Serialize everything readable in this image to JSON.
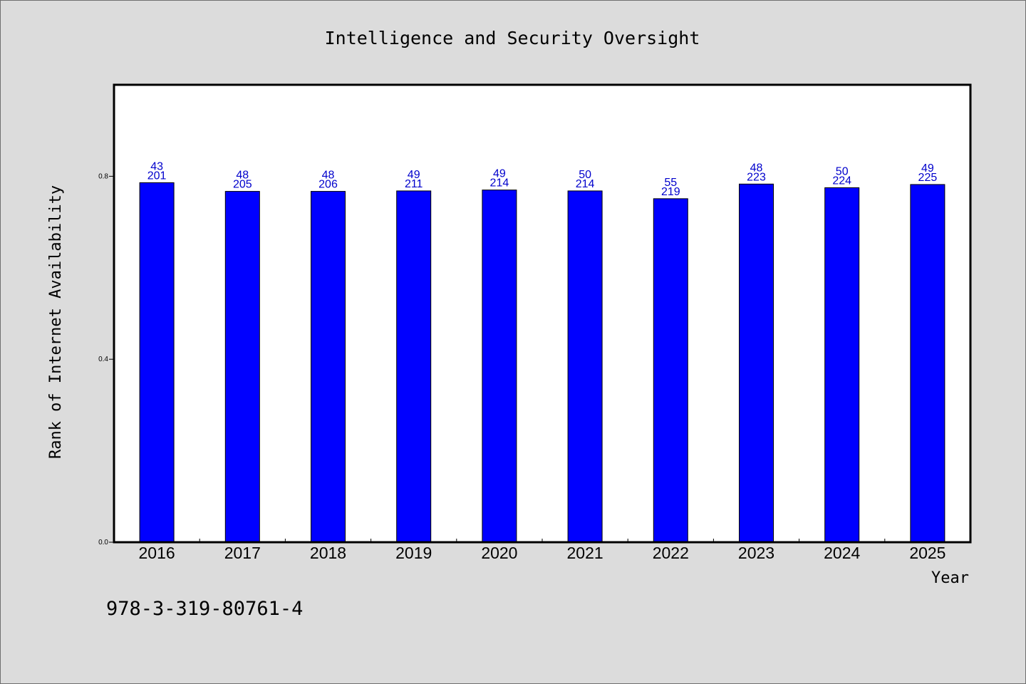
{
  "chart_data": {
    "type": "bar",
    "title": "Intelligence and Security Oversight",
    "xlabel": "Year",
    "ylabel": "Rank of Internet Availability",
    "categories": [
      "2016",
      "2017",
      "2018",
      "2019",
      "2020",
      "2021",
      "2022",
      "2023",
      "2024",
      "2025"
    ],
    "values": [
      0.786,
      0.767,
      0.767,
      0.768,
      0.77,
      0.768,
      0.751,
      0.783,
      0.775,
      0.782
    ],
    "label_top": [
      "43",
      "48",
      "48",
      "49",
      "49",
      "50",
      "55",
      "48",
      "50",
      "49"
    ],
    "label_bottom": [
      "201",
      "205",
      "206",
      "211",
      "214",
      "214",
      "219",
      "223",
      "224",
      "225"
    ],
    "ylim": [
      0,
      1.0
    ],
    "yticks": [
      "0.0",
      "0.4",
      "0.8"
    ],
    "grid": false,
    "bar_color": "#0000ff",
    "label_color": "#0000cc",
    "background_color": "#dcdcdc",
    "plot_background": "#ffffff"
  },
  "footer": {
    "isbn": "978-3-319-80761-4"
  }
}
